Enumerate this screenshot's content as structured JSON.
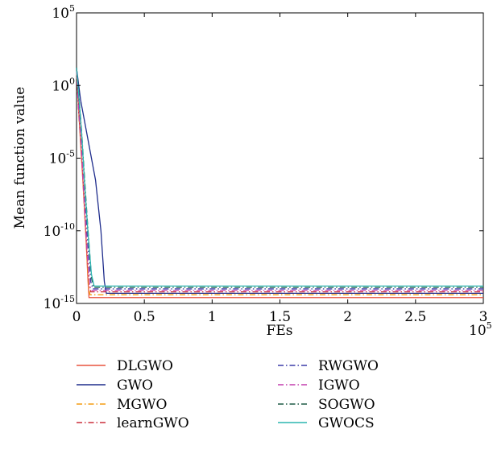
{
  "chart_data": {
    "type": "line",
    "title": "",
    "xlabel": "FEs",
    "ylabel": "Mean function value",
    "x_multiplier": "10^5",
    "x_multiplier_base": "10",
    "x_multiplier_exp": "5",
    "xlim": [
      0,
      300000
    ],
    "ylim_log10": [
      -15,
      5
    ],
    "yscale": "log",
    "grid": false,
    "legend_placement": "below plot, two columns",
    "x_ticks": [
      {
        "value": 0,
        "label": "0"
      },
      {
        "value": 50000,
        "label": "0.5"
      },
      {
        "value": 100000,
        "label": "1"
      },
      {
        "value": 150000,
        "label": "1.5"
      },
      {
        "value": 200000,
        "label": "2"
      },
      {
        "value": 250000,
        "label": "2.5"
      },
      {
        "value": 300000,
        "label": "3"
      }
    ],
    "y_ticks": [
      {
        "log10": 5,
        "base": "10",
        "exp": "5"
      },
      {
        "log10": 0,
        "base": "10",
        "exp": "0"
      },
      {
        "log10": -5,
        "base": "10",
        "exp": "-5"
      },
      {
        "log10": -10,
        "base": "10",
        "exp": "-10"
      },
      {
        "log10": -15,
        "base": "10",
        "exp": "-15"
      }
    ],
    "series": [
      {
        "name": "DLGWO",
        "color": "#e8543f",
        "dash": "solid",
        "x": [
          0,
          1500,
          3000,
          5000,
          7000,
          8500,
          9200,
          300000
        ],
        "y_log10": [
          1.1,
          -1.5,
          -4,
          -7,
          -10.5,
          -13.5,
          -14.6,
          -14.6
        ]
      },
      {
        "name": "GWO",
        "color": "#1f2d8c",
        "dash": "solid",
        "x": [
          0,
          3000,
          6000,
          10000,
          14000,
          18000,
          20500,
          22000,
          300000
        ],
        "y_log10": [
          1.2,
          -1.0,
          -2.5,
          -4.5,
          -6.5,
          -10,
          -13.5,
          -14.3,
          -14.3
        ]
      },
      {
        "name": "MGWO",
        "color": "#f39c12",
        "dash": "dashdot",
        "x": [
          0,
          1500,
          3500,
          5500,
          7500,
          9000,
          10000,
          300000
        ],
        "y_log10": [
          1.1,
          -1.8,
          -4.5,
          -8,
          -11.5,
          -14,
          -14.4,
          -14.4
        ]
      },
      {
        "name": "learnGWO",
        "color": "#cc2f3c",
        "dash": "dashdot",
        "x": [
          0,
          1500,
          3500,
          5500,
          7500,
          9500,
          10500,
          300000
        ],
        "y_log10": [
          1.15,
          -1.7,
          -4.3,
          -7.6,
          -11,
          -13.6,
          -14.2,
          -14.2
        ]
      },
      {
        "name": "RWGWO",
        "color": "#3c3ca8",
        "dash": "dashdot",
        "x": [
          0,
          2000,
          4000,
          6000,
          8000,
          10500,
          12000,
          300000
        ],
        "y_log10": [
          1.2,
          -1.3,
          -3.8,
          -7,
          -10.5,
          -13.5,
          -14.0,
          -14.0
        ]
      },
      {
        "name": "IGWO",
        "color": "#c43fae",
        "dash": "dashdot",
        "x": [
          0,
          1500,
          3500,
          5500,
          7500,
          9500,
          11000,
          300000
        ],
        "y_log10": [
          1.1,
          -1.6,
          -4.2,
          -7.8,
          -11.2,
          -13.8,
          -14.1,
          -14.1
        ]
      },
      {
        "name": "SOGWO",
        "color": "#1e5c46",
        "dash": "dashdot",
        "x": [
          0,
          2000,
          4000,
          6000,
          8500,
          11000,
          12500,
          300000
        ],
        "y_log10": [
          1.25,
          -1.0,
          -3.5,
          -6.5,
          -10,
          -13.2,
          -13.9,
          -13.9
        ]
      },
      {
        "name": "GWOCS",
        "color": "#2cb5b0",
        "dash": "solid",
        "x": [
          0,
          2000,
          4000,
          6000,
          8500,
          11000,
          13000,
          300000
        ],
        "y_log10": [
          1.2,
          -1.1,
          -3.6,
          -6.8,
          -10.2,
          -13.0,
          -13.8,
          -13.8
        ]
      }
    ]
  }
}
